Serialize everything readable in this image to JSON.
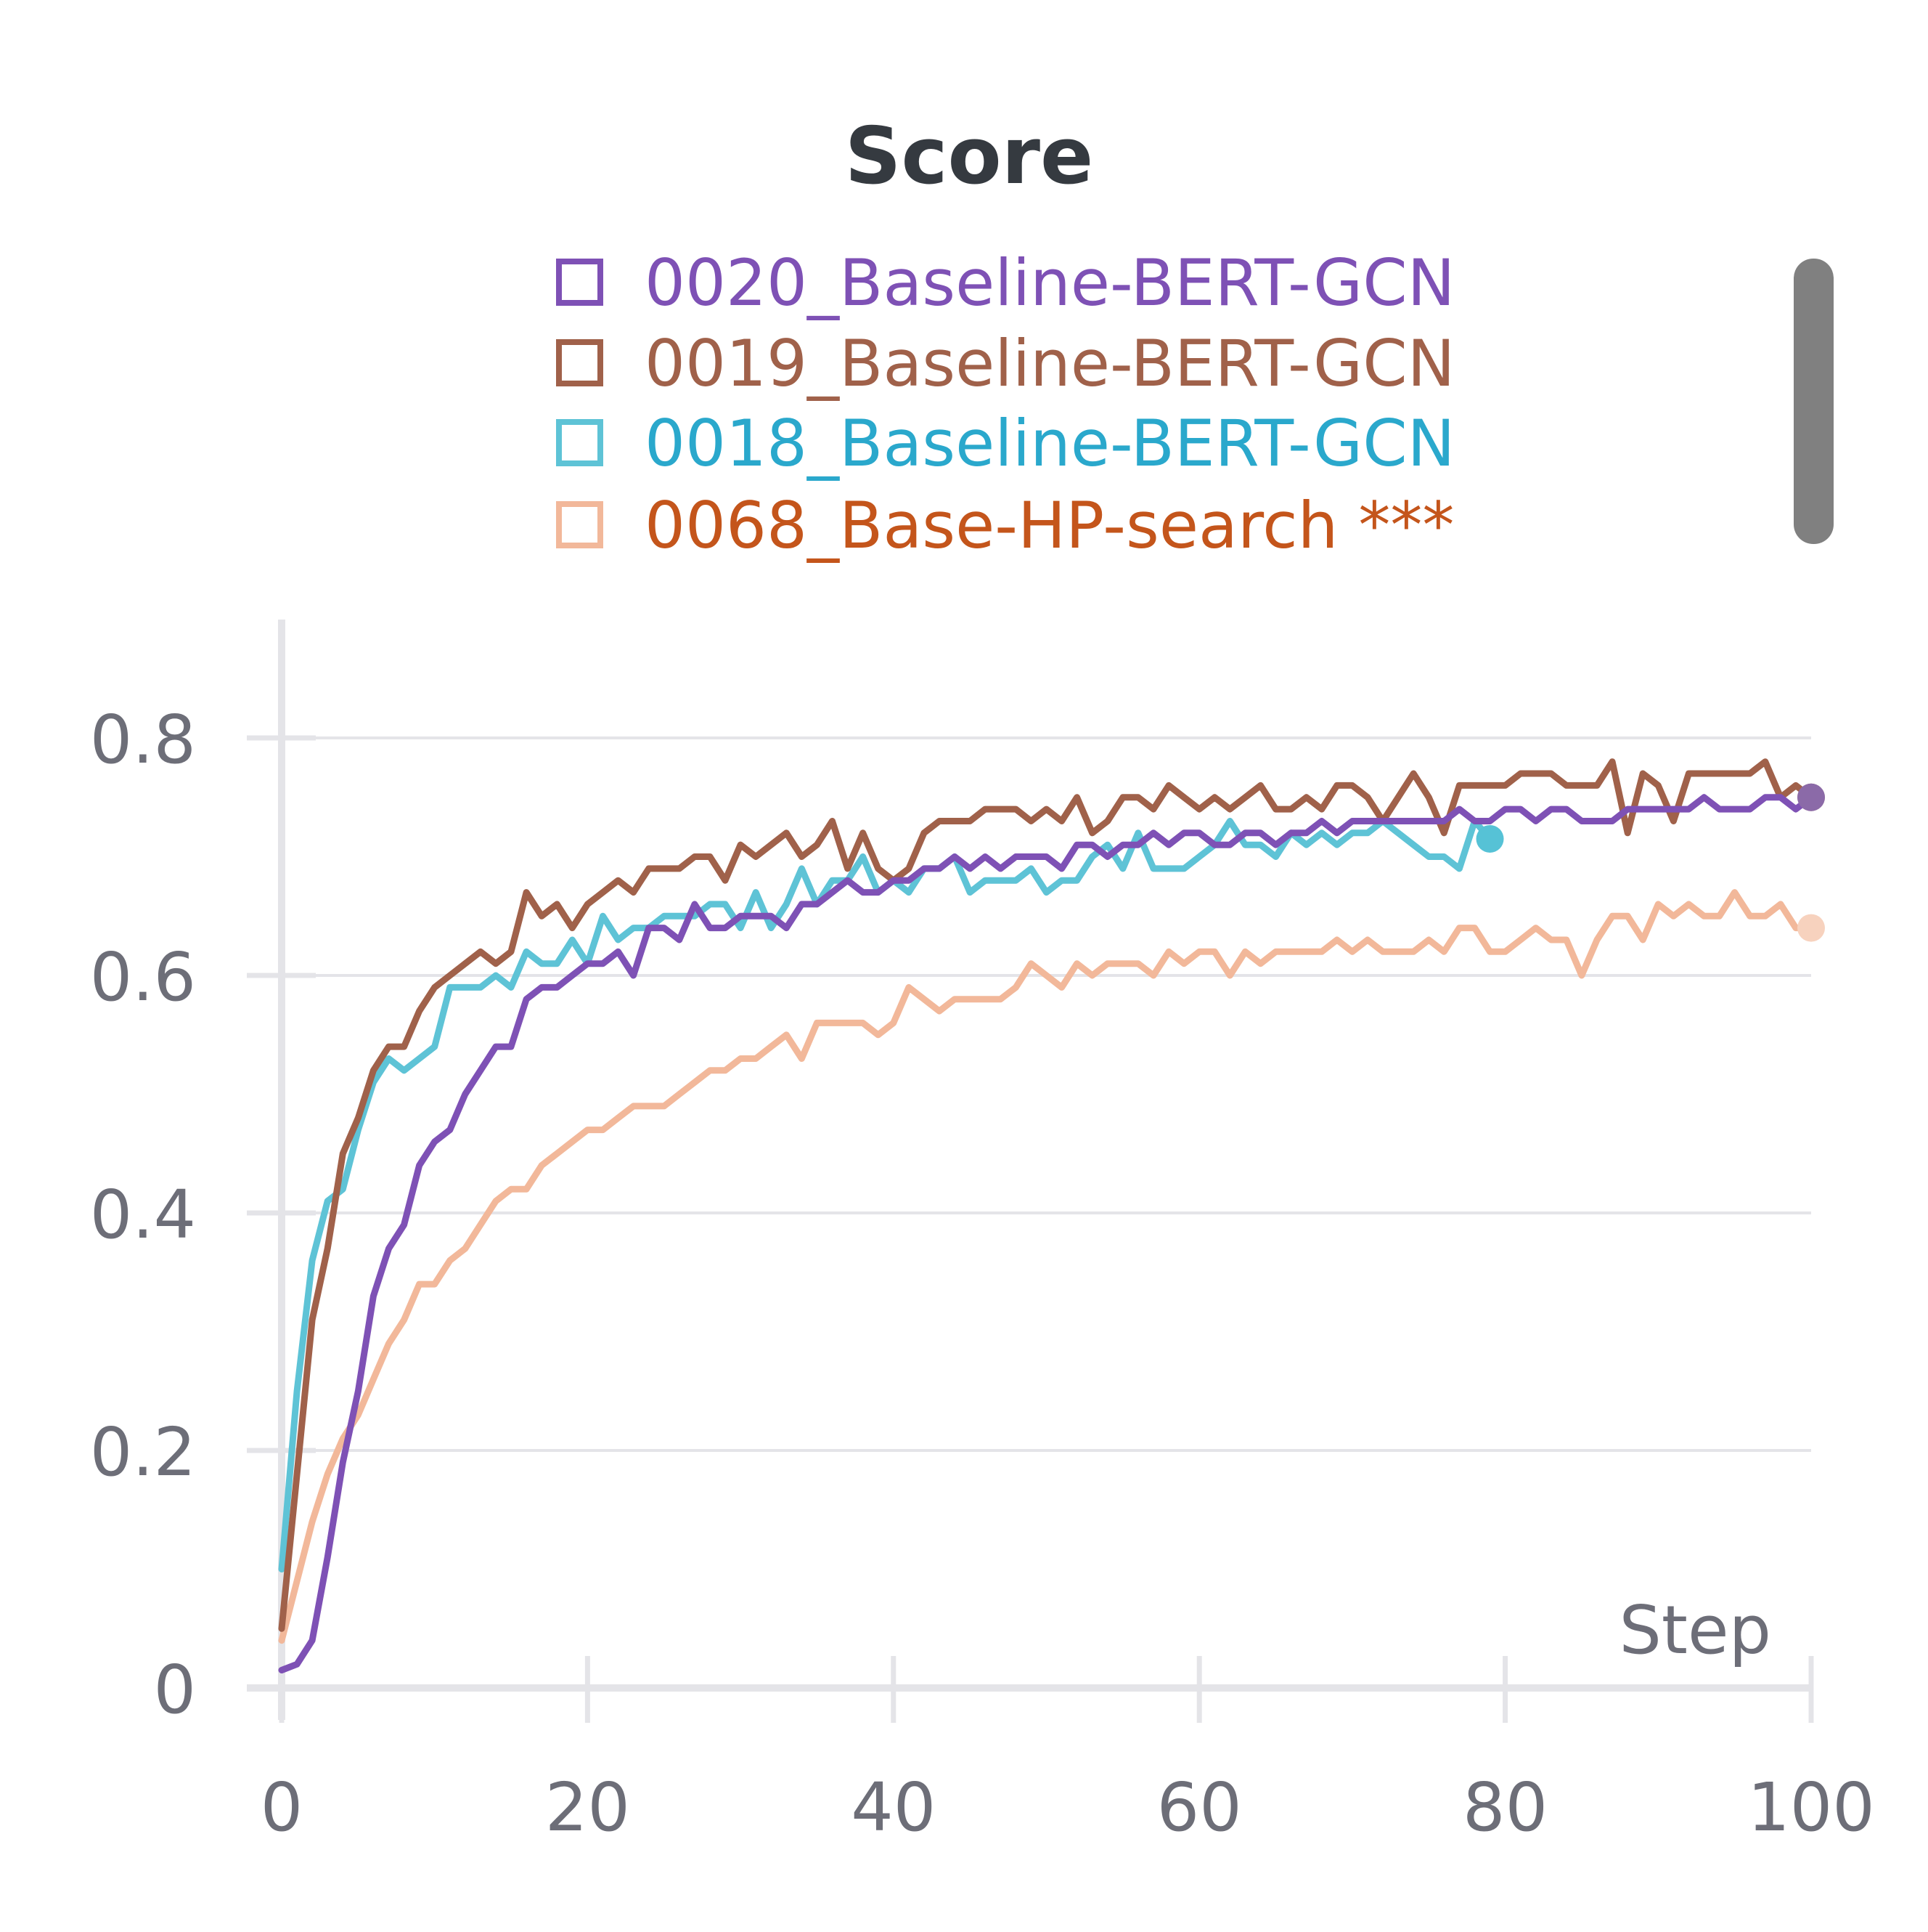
{
  "chart_data": {
    "type": "line",
    "title": "Score",
    "xlabel": "Step",
    "ylabel": "",
    "xlim": [
      0,
      100
    ],
    "ylim": [
      0,
      0.9
    ],
    "x_ticks": [
      "0",
      "20",
      "40",
      "60",
      "80",
      "100"
    ],
    "y_ticks": [
      "0",
      "0.2",
      "0.4",
      "0.6",
      "0.8"
    ],
    "grid": "horizontal",
    "legend_position": "top-center",
    "series": [
      {
        "name": "0020_Baseline-BERT-GCN",
        "line_color": "#7e51b5",
        "label_color": "#7e51b5",
        "x": [
          0,
          1,
          2,
          3,
          4,
          5,
          6,
          7,
          8,
          9,
          10,
          11,
          12,
          13,
          14,
          15,
          16,
          17,
          18,
          19,
          20,
          21,
          22,
          23,
          24,
          25,
          26,
          27,
          28,
          29,
          30,
          31,
          32,
          33,
          34,
          35,
          36,
          37,
          38,
          39,
          40,
          41,
          42,
          43,
          44,
          45,
          46,
          47,
          48,
          49,
          50,
          51,
          52,
          53,
          54,
          55,
          56,
          57,
          58,
          59,
          60,
          61,
          62,
          63,
          64,
          65,
          66,
          67,
          68,
          69,
          70,
          71,
          72,
          73,
          74,
          75,
          76,
          77,
          78,
          79,
          80,
          81,
          82,
          83,
          84,
          85,
          86,
          87,
          88,
          89,
          90,
          91,
          92,
          93,
          94,
          95,
          96,
          97,
          98,
          99,
          100
        ],
        "values": [
          0.015,
          0.02,
          0.04,
          0.11,
          0.19,
          0.25,
          0.33,
          0.37,
          0.39,
          0.44,
          0.46,
          0.47,
          0.5,
          0.52,
          0.54,
          0.54,
          0.58,
          0.59,
          0.59,
          0.6,
          0.61,
          0.61,
          0.62,
          0.6,
          0.64,
          0.64,
          0.63,
          0.66,
          0.64,
          0.64,
          0.65,
          0.65,
          0.65,
          0.64,
          0.66,
          0.66,
          0.67,
          0.68,
          0.67,
          0.67,
          0.68,
          0.68,
          0.69,
          0.69,
          0.7,
          0.69,
          0.7,
          0.69,
          0.7,
          0.7,
          0.7,
          0.69,
          0.71,
          0.71,
          0.7,
          0.71,
          0.71,
          0.72,
          0.71,
          0.72,
          0.72,
          0.71,
          0.71,
          0.72,
          0.72,
          0.71,
          0.72,
          0.72,
          0.73,
          0.72,
          0.73,
          0.73,
          0.73,
          0.73,
          0.73,
          0.73,
          0.73,
          0.74,
          0.73,
          0.73,
          0.74,
          0.74,
          0.73,
          0.74,
          0.74,
          0.73,
          0.73,
          0.73,
          0.74,
          0.74,
          0.74,
          0.74,
          0.74,
          0.75,
          0.74,
          0.74,
          0.74,
          0.75,
          0.75,
          0.74,
          0.75
        ],
        "end_marker": "#8b6aa8"
      },
      {
        "name": "0019_Baseline-BERT-GCN",
        "line_color": "#a0614a",
        "label_color": "#a0614a",
        "x": [
          0,
          1,
          2,
          3,
          4,
          5,
          6,
          7,
          8,
          9,
          10,
          11,
          12,
          13,
          14,
          15,
          16,
          17,
          18,
          19,
          20,
          21,
          22,
          23,
          24,
          25,
          26,
          27,
          28,
          29,
          30,
          31,
          32,
          33,
          34,
          35,
          36,
          37,
          38,
          39,
          40,
          41,
          42,
          43,
          44,
          45,
          46,
          47,
          48,
          49,
          50,
          51,
          52,
          53,
          54,
          55,
          56,
          57,
          58,
          59,
          60,
          61,
          62,
          63,
          64,
          65,
          66,
          67,
          68,
          69,
          70,
          71,
          72,
          73,
          74,
          75,
          76,
          77,
          78,
          79,
          80,
          81,
          82,
          83,
          84,
          85,
          86,
          87,
          88,
          89,
          90,
          91,
          92,
          93,
          94,
          95,
          96,
          97,
          98,
          99,
          100
        ],
        "values": [
          0.05,
          0.18,
          0.31,
          0.37,
          0.45,
          0.48,
          0.52,
          0.54,
          0.54,
          0.57,
          0.59,
          0.6,
          0.61,
          0.62,
          0.61,
          0.62,
          0.67,
          0.65,
          0.66,
          0.64,
          0.66,
          0.67,
          0.68,
          0.67,
          0.69,
          0.69,
          0.69,
          0.7,
          0.7,
          0.68,
          0.71,
          0.7,
          0.71,
          0.72,
          0.7,
          0.71,
          0.73,
          0.69,
          0.72,
          0.69,
          0.68,
          0.69,
          0.72,
          0.73,
          0.73,
          0.73,
          0.74,
          0.74,
          0.74,
          0.73,
          0.74,
          0.73,
          0.75,
          0.72,
          0.73,
          0.75,
          0.75,
          0.74,
          0.76,
          0.75,
          0.74,
          0.75,
          0.74,
          0.75,
          0.76,
          0.74,
          0.74,
          0.75,
          0.74,
          0.76,
          0.76,
          0.75,
          0.73,
          0.75,
          0.77,
          0.75,
          0.72,
          0.76,
          0.76,
          0.76,
          0.76,
          0.77,
          0.77,
          0.77,
          0.76,
          0.76,
          0.76,
          0.78,
          0.72,
          0.77,
          0.76,
          0.73,
          0.77,
          0.77,
          0.77,
          0.77,
          0.77,
          0.78,
          0.75,
          0.76,
          0.75
        ],
        "end_marker": "#a97a76"
      },
      {
        "name": "0018_Baseline-BERT-GCN",
        "line_color": "#5ec3d6",
        "label_color": "#2aa8cc",
        "x": [
          0,
          1,
          2,
          3,
          4,
          5,
          6,
          7,
          8,
          9,
          10,
          11,
          12,
          13,
          14,
          15,
          16,
          17,
          18,
          19,
          20,
          21,
          22,
          23,
          24,
          25,
          26,
          27,
          28,
          29,
          30,
          31,
          32,
          33,
          34,
          35,
          36,
          37,
          38,
          39,
          40,
          41,
          42,
          43,
          44,
          45,
          46,
          47,
          48,
          49,
          50,
          51,
          52,
          53,
          54,
          55,
          56,
          57,
          58,
          59,
          60,
          61,
          62,
          63,
          64,
          65,
          66,
          67,
          68,
          69,
          70,
          71,
          72,
          73,
          74,
          75,
          76,
          77,
          78,
          79
        ],
        "values": [
          0.1,
          0.25,
          0.36,
          0.41,
          0.42,
          0.47,
          0.51,
          0.53,
          0.52,
          0.53,
          0.54,
          0.59,
          0.59,
          0.59,
          0.6,
          0.59,
          0.62,
          0.61,
          0.61,
          0.63,
          0.61,
          0.65,
          0.63,
          0.64,
          0.64,
          0.65,
          0.65,
          0.65,
          0.66,
          0.66,
          0.64,
          0.67,
          0.64,
          0.66,
          0.69,
          0.66,
          0.68,
          0.68,
          0.7,
          0.67,
          0.68,
          0.67,
          0.69,
          0.69,
          0.7,
          0.67,
          0.68,
          0.68,
          0.68,
          0.69,
          0.67,
          0.68,
          0.68,
          0.7,
          0.71,
          0.69,
          0.72,
          0.69,
          0.69,
          0.69,
          0.7,
          0.71,
          0.73,
          0.71,
          0.71,
          0.7,
          0.72,
          0.71,
          0.72,
          0.71,
          0.72,
          0.72,
          0.73,
          0.72,
          0.71,
          0.7,
          0.7,
          0.69,
          0.73,
          0.715
        ],
        "end_marker": "#56c2d6"
      },
      {
        "name": "0068_Base-HP-search ***",
        "line_color": "#f2b89a",
        "label_color": "#c4551b",
        "x": [
          0,
          1,
          2,
          3,
          4,
          5,
          6,
          7,
          8,
          9,
          10,
          11,
          12,
          13,
          14,
          15,
          16,
          17,
          18,
          19,
          20,
          21,
          22,
          23,
          24,
          25,
          26,
          27,
          28,
          29,
          30,
          31,
          32,
          33,
          34,
          35,
          36,
          37,
          38,
          39,
          40,
          41,
          42,
          43,
          44,
          45,
          46,
          47,
          48,
          49,
          50,
          51,
          52,
          53,
          54,
          55,
          56,
          57,
          58,
          59,
          60,
          61,
          62,
          63,
          64,
          65,
          66,
          67,
          68,
          69,
          70,
          71,
          72,
          73,
          74,
          75,
          76,
          77,
          78,
          79,
          80,
          81,
          82,
          83,
          84,
          85,
          86,
          87,
          88,
          89,
          90,
          91,
          92,
          93,
          94,
          95,
          96,
          97,
          98,
          99,
          100
        ],
        "values": [
          0.04,
          0.09,
          0.14,
          0.18,
          0.21,
          0.23,
          0.26,
          0.29,
          0.31,
          0.34,
          0.34,
          0.36,
          0.37,
          0.39,
          0.41,
          0.42,
          0.42,
          0.44,
          0.45,
          0.46,
          0.47,
          0.47,
          0.48,
          0.49,
          0.49,
          0.49,
          0.5,
          0.51,
          0.52,
          0.52,
          0.53,
          0.53,
          0.54,
          0.55,
          0.53,
          0.56,
          0.56,
          0.56,
          0.56,
          0.55,
          0.56,
          0.59,
          0.58,
          0.57,
          0.58,
          0.58,
          0.58,
          0.58,
          0.59,
          0.61,
          0.6,
          0.59,
          0.61,
          0.6,
          0.61,
          0.61,
          0.61,
          0.6,
          0.62,
          0.61,
          0.62,
          0.62,
          0.6,
          0.62,
          0.61,
          0.62,
          0.62,
          0.62,
          0.62,
          0.63,
          0.62,
          0.63,
          0.62,
          0.62,
          0.62,
          0.63,
          0.62,
          0.64,
          0.64,
          0.62,
          0.62,
          0.63,
          0.64,
          0.63,
          0.63,
          0.6,
          0.63,
          0.65,
          0.65,
          0.63,
          0.66,
          0.65,
          0.66,
          0.65,
          0.65,
          0.67,
          0.65,
          0.65,
          0.66,
          0.64,
          0.64
        ],
        "end_marker": "#f7d2be"
      }
    ]
  },
  "colors": {
    "title": "#353a40",
    "axis_text": "#6d6e78",
    "axis_line": "#e4e4e8",
    "grid": "#e4e4e8",
    "scrollbar": "#808080"
  }
}
